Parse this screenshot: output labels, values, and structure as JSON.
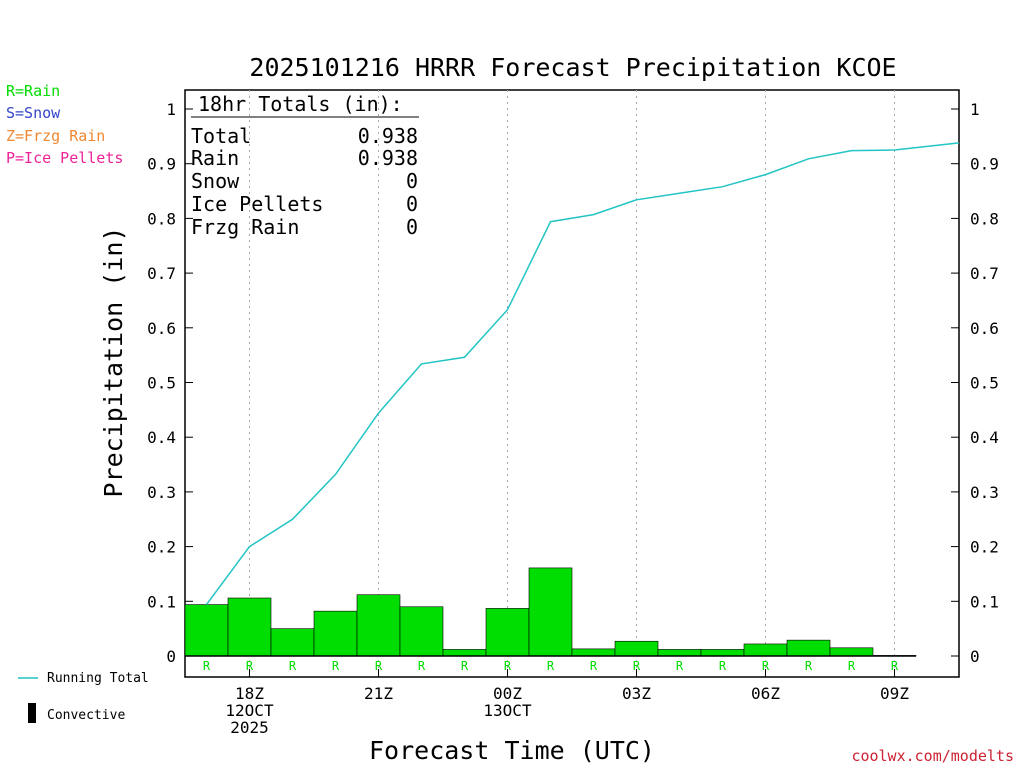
{
  "legend_left": {
    "rain": "R=Rain",
    "snow": "S=Snow",
    "frzg": "Z=Frzg Rain",
    "ice": "P=Ice Pellets",
    "running_total": "Running Total",
    "convective": "Convective"
  },
  "credit": "coolwx.com/modelts",
  "totals_box": {
    "title": "18hr Totals (in):",
    "rows": [
      {
        "label": "Total",
        "value": "0.938"
      },
      {
        "label": "Rain",
        "value": "0.938"
      },
      {
        "label": "Snow",
        "value": "0"
      },
      {
        "label": "Ice Pellets",
        "value": "0"
      },
      {
        "label": "Frzg Rain",
        "value": "0"
      }
    ]
  },
  "colors": {
    "rain": "#00dd00",
    "snow": "#3344cc",
    "frzg": "#ee8833",
    "ice": "#ee2299",
    "running_total": "#22c4c4",
    "grid": "#aaaaaa",
    "credit": "#cc2233"
  },
  "chart_data": {
    "type": "bar",
    "title": "2025101216 HRRR Forecast Precipitation KCOE",
    "xlabel": "Forecast Time (UTC)",
    "ylabel": "Precipitation (in)",
    "ylim": [
      0,
      1
    ],
    "yticks": [
      "0",
      "0.1",
      "0.2",
      "0.3",
      "0.4",
      "0.5",
      "0.6",
      "0.7",
      "0.8",
      "0.9",
      "1"
    ],
    "x_hours_range": [
      -1.5,
      16.5
    ],
    "x_ticks": [
      {
        "hour": 0,
        "lines": [
          "18Z",
          "12OCT",
          "2025"
        ]
      },
      {
        "hour": 3,
        "lines": [
          "21Z"
        ]
      },
      {
        "hour": 6,
        "lines": [
          "00Z",
          "13OCT"
        ]
      },
      {
        "hour": 9,
        "lines": [
          "03Z"
        ]
      },
      {
        "hour": 12,
        "lines": [
          "06Z"
        ]
      },
      {
        "hour": 15,
        "lines": [
          "09Z"
        ]
      }
    ],
    "grid": "vertical dotted",
    "bars": {
      "name": "Rain",
      "hours": [
        -1,
        0,
        1,
        2,
        3,
        4,
        5,
        6,
        7,
        8,
        9,
        10,
        11,
        12,
        13,
        14,
        15
      ],
      "values": [
        0.094,
        0.106,
        0.05,
        0.082,
        0.112,
        0.09,
        0.012,
        0.087,
        0.161,
        0.013,
        0.027,
        0.012,
        0.012,
        0.022,
        0.029,
        0.015,
        0.001
      ],
      "ptype_labels": [
        "R",
        "R",
        "R",
        "R",
        "R",
        "R",
        "R",
        "R",
        "R",
        "R",
        "R",
        "R",
        "R",
        "R",
        "R",
        "R",
        "R"
      ]
    },
    "running_total": {
      "name": "Running Total",
      "hours": [
        -1,
        0,
        1,
        2,
        3,
        4,
        5,
        6,
        7,
        8,
        9,
        10,
        11,
        12,
        13,
        14,
        15,
        16.5
      ],
      "values": [
        0.094,
        0.2,
        0.25,
        0.332,
        0.444,
        0.534,
        0.546,
        0.633,
        0.794,
        0.807,
        0.834,
        0.846,
        0.858,
        0.88,
        0.909,
        0.924,
        0.925,
        0.938
      ]
    }
  }
}
